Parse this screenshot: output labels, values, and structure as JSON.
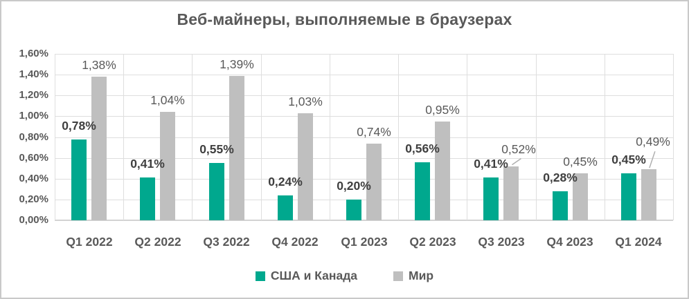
{
  "chart_data": {
    "type": "bar",
    "title": "Веб-майнеры, выполняемые в браузерах",
    "categories": [
      "Q1 2022",
      "Q2 2022",
      "Q3 2022",
      "Q4 2022",
      "Q1 2023",
      "Q2 2023",
      "Q3 2023",
      "Q4 2023",
      "Q1 2024"
    ],
    "series": [
      {
        "name": "США и Канада",
        "color": "#00A88E",
        "values": [
          0.78,
          0.41,
          0.55,
          0.24,
          0.2,
          0.56,
          0.41,
          0.28,
          0.45
        ],
        "labels": [
          "0,78%",
          "0,41%",
          "0,55%",
          "0,24%",
          "0,20%",
          "0,56%",
          "0,41%",
          "0,28%",
          "0,45%"
        ]
      },
      {
        "name": "Мир",
        "color": "#BFBFBF",
        "values": [
          1.38,
          1.04,
          1.39,
          1.03,
          0.74,
          0.95,
          0.52,
          0.45,
          0.49
        ],
        "labels": [
          "1,38%",
          "1,04%",
          "1,39%",
          "1,03%",
          "0,74%",
          "0,95%",
          "0,52%",
          "0,45%",
          "0,49%"
        ]
      }
    ],
    "y_axis": {
      "min": 0,
      "max": 1.6,
      "step": 0.2,
      "tick_labels": [
        "0,00%",
        "0,20%",
        "0,40%",
        "0,60%",
        "0,80%",
        "1,00%",
        "1,20%",
        "1,40%",
        "1,60%"
      ]
    },
    "grid": true,
    "legend_position": "bottom",
    "label_callouts": [
      {
        "series": 1,
        "index": 6,
        "dx": 11,
        "gap": 14,
        "line": true
      },
      {
        "series": 1,
        "index": 8,
        "dx": 6,
        "gap": 29,
        "line": true
      }
    ],
    "colors": {
      "title_text": "#595959",
      "axis_text": "#595959",
      "label_dark": "#3F3F3F",
      "gridline": "#DEDEDE",
      "leader_line": "#AFAFAF"
    }
  }
}
